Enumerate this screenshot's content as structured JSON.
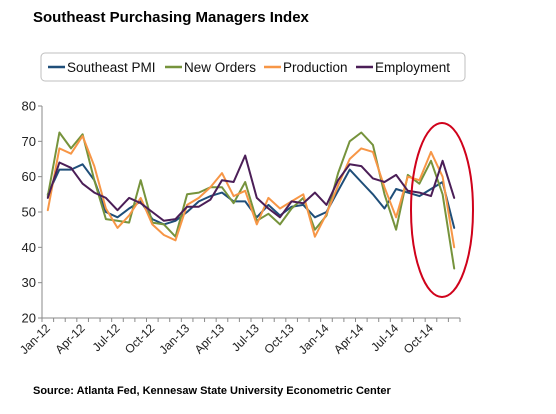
{
  "chart_data": {
    "type": "line",
    "title": "Southeast Purchasing Managers Index",
    "source": "Source: Atlanta Fed, Kennesaw State University Econometric Center",
    "xlabel": "",
    "ylabel": "",
    "ylim": [
      20,
      80
    ],
    "yticks": [
      20,
      30,
      40,
      50,
      60,
      70,
      80
    ],
    "grid": false,
    "legend_position": "top",
    "x": [
      "Jan-12",
      "Feb-12",
      "Mar-12",
      "Apr-12",
      "May-12",
      "Jun-12",
      "Jul-12",
      "Aug-12",
      "Sep-12",
      "Oct-12",
      "Nov-12",
      "Dec-12",
      "Jan-13",
      "Feb-13",
      "Mar-13",
      "Apr-13",
      "May-13",
      "Jun-13",
      "Jul-13",
      "Aug-13",
      "Sep-13",
      "Oct-13",
      "Nov-13",
      "Dec-13",
      "Jan-14",
      "Feb-14",
      "Mar-14",
      "Apr-14",
      "May-14",
      "Jun-14",
      "Jul-14",
      "Aug-14",
      "Sep-14",
      "Oct-14",
      "Nov-14",
      "Dec-14"
    ],
    "x_tick_labels": [
      "Jan-12",
      "Apr-12",
      "Jul-12",
      "Oct-12",
      "Jan-13",
      "Apr-13",
      "Jul-13",
      "Oct-13",
      "Jan-14",
      "Apr-14",
      "Jul-14",
      "Oct-14"
    ],
    "series": [
      {
        "name": "Southeast PMI",
        "color": "#1f4e79",
        "values": [
          55,
          62,
          62,
          63.5,
          59,
          50,
          48.5,
          51,
          53,
          48,
          46.5,
          47.5,
          50,
          53,
          54.5,
          55.5,
          53,
          53,
          48.5,
          52,
          49,
          51.5,
          52,
          48.5,
          50,
          56,
          62,
          58.5,
          55,
          51,
          56.5,
          55.5,
          54.5,
          56.5,
          58.5,
          45.5
        ]
      },
      {
        "name": "New Orders",
        "color": "#76933c",
        "values": [
          54.5,
          72.5,
          68,
          72,
          59,
          48,
          47.5,
          47,
          59,
          47,
          46.5,
          43,
          55,
          55.5,
          57,
          57,
          52.5,
          58.5,
          47.5,
          49.5,
          46.5,
          51,
          54,
          45,
          49,
          61,
          70,
          72.5,
          69,
          55,
          45,
          60.5,
          58,
          64.5,
          55,
          34
        ]
      },
      {
        "name": "Production",
        "color": "#f79646",
        "values": [
          50.5,
          68,
          66.5,
          71.5,
          63,
          51,
          45.5,
          49,
          54,
          46.5,
          43.5,
          42,
          52,
          54,
          57,
          61,
          54.5,
          56,
          46.5,
          54,
          51,
          53,
          55,
          43,
          49.5,
          57.5,
          65,
          68,
          67,
          57,
          48.5,
          60,
          59,
          67,
          60,
          40
        ]
      },
      {
        "name": "Employment",
        "color": "#4b1e57",
        "values": [
          54,
          64,
          62.5,
          58,
          55.5,
          54,
          50.5,
          54,
          52.5,
          50,
          47.5,
          48,
          51.5,
          51.5,
          53.5,
          59,
          58.5,
          66,
          54,
          51,
          48.5,
          53,
          52.5,
          55.5,
          52,
          59,
          63.5,
          63,
          59.5,
          58.5,
          60.5,
          56,
          55.5,
          54.5,
          64.5,
          54
        ]
      }
    ],
    "annotations": [
      {
        "type": "ellipse",
        "color": "#d0021b",
        "covers": "Sep-14 to Dec-14"
      }
    ]
  }
}
